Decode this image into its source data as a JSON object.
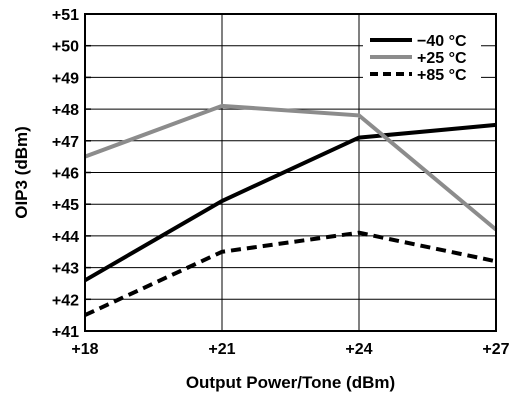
{
  "chart_data": {
    "type": "line",
    "title": "",
    "xlabel": "Output Power/Tone (dBm)",
    "ylabel": "OIP3 (dBm)",
    "x": [
      18,
      21,
      24,
      27
    ],
    "x_tick_labels": [
      "+18",
      "+21",
      "+24",
      "+27"
    ],
    "xlim": [
      18,
      27
    ],
    "ylim": [
      41,
      51
    ],
    "y_tick_values": [
      41,
      42,
      43,
      44,
      45,
      46,
      47,
      48,
      49,
      50,
      51
    ],
    "y_tick_labels": [
      "+41",
      "+42",
      "+43",
      "+44",
      "+45",
      "+46",
      "+47",
      "+48",
      "+49",
      "+50",
      "+51"
    ],
    "grid": true,
    "legend_position": "top-right",
    "series": [
      {
        "name": "−40 °C",
        "values": [
          42.6,
          45.1,
          47.1,
          47.5
        ],
        "color": "#000000",
        "style": "solid"
      },
      {
        "name": "+25 °C",
        "values": [
          46.5,
          48.1,
          47.8,
          44.2
        ],
        "color": "#8c8c8c",
        "style": "solid"
      },
      {
        "name": "+85 °C",
        "values": [
          41.5,
          43.5,
          44.1,
          43.2
        ],
        "color": "#000000",
        "style": "dashed"
      }
    ]
  }
}
